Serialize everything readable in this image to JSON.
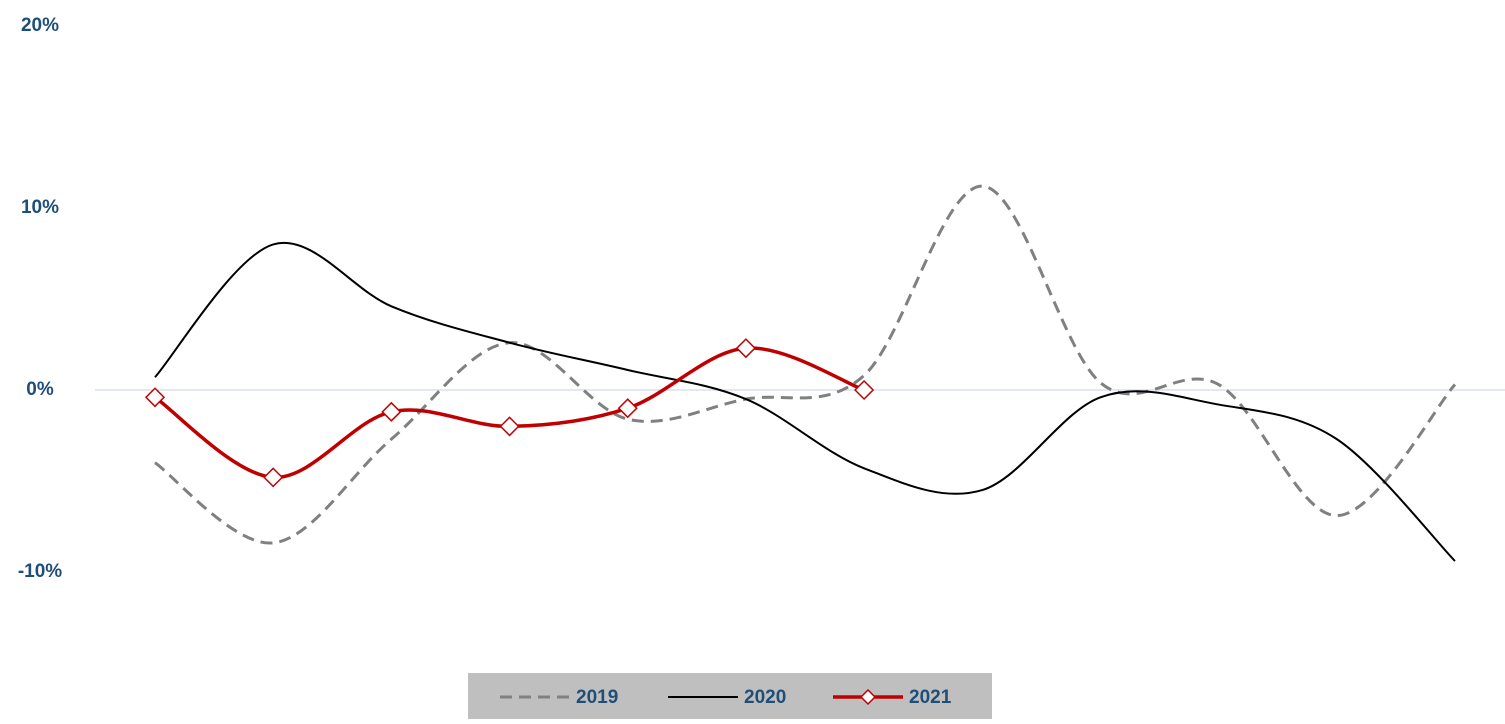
{
  "chart_data": {
    "type": "line",
    "categories": [
      null,
      null,
      null,
      null,
      null,
      null,
      null,
      null,
      null,
      null,
      null,
      null
    ],
    "series": [
      {
        "name": "2019",
        "color": "#808080",
        "dash": true,
        "marker": false,
        "values": [
          -4.0,
          -8.4,
          -2.7,
          2.6,
          -1.6,
          -0.5,
          0.8,
          11.2,
          0.4,
          0.3,
          -6.9,
          0.3
        ]
      },
      {
        "name": "2020",
        "color": "#000000",
        "dash": false,
        "marker": false,
        "values": [
          0.7,
          8.0,
          4.6,
          2.6,
          1.1,
          -0.5,
          -4.3,
          -5.5,
          -0.4,
          -0.8,
          -2.7,
          -9.4
        ]
      },
      {
        "name": "2021",
        "color": "#c00000",
        "dash": false,
        "marker": true,
        "values": [
          -0.4,
          -4.8,
          -1.2,
          -2.0,
          -1.0,
          2.3,
          0.0,
          null,
          null,
          null,
          null,
          null
        ]
      }
    ],
    "ylim": [
      -10,
      20
    ],
    "yticks": [
      {
        "value": -10,
        "label": "-10%"
      },
      {
        "value": 0,
        "label": "0%"
      },
      {
        "value": 10,
        "label": "10%"
      },
      {
        "value": 20,
        "label": "20%"
      }
    ],
    "grid": false,
    "smooth": true,
    "legend": "bottom"
  }
}
